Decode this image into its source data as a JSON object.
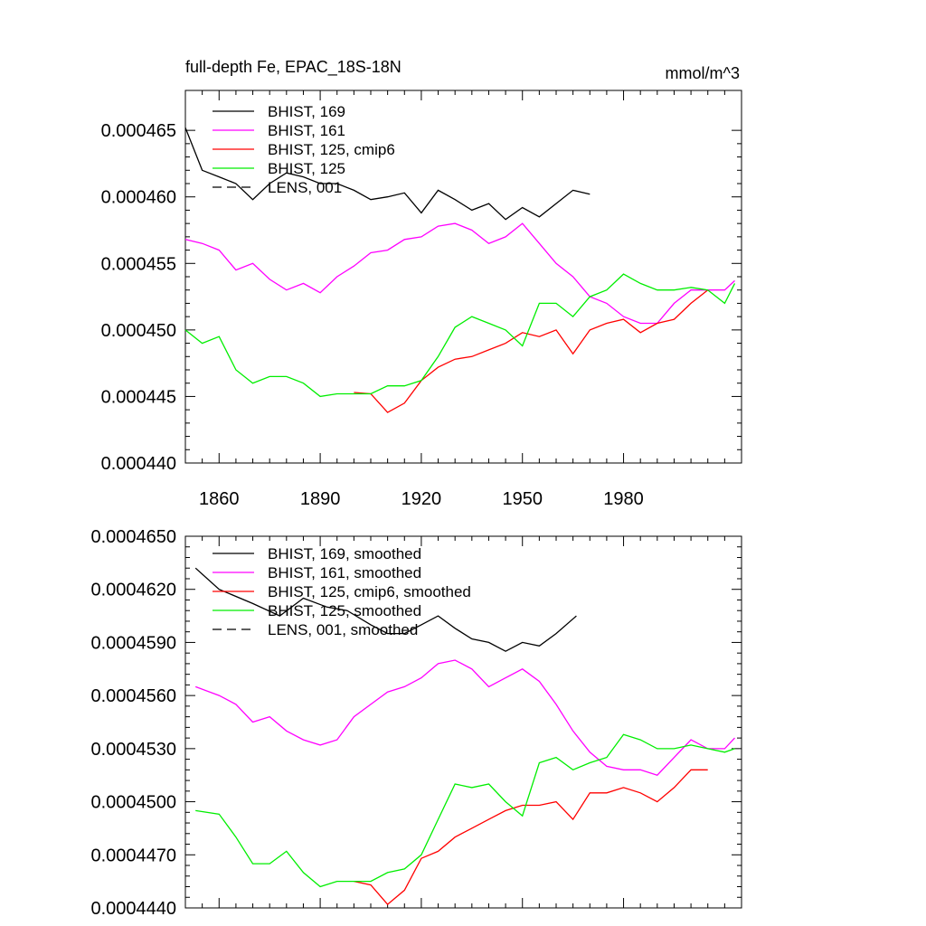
{
  "chart_data": [
    {
      "type": "line",
      "title": "full-depth Fe, EPAC_18S-18N",
      "units": "mmol/m^3",
      "xlim": [
        1850,
        2015
      ],
      "ylim": [
        0.00044,
        0.000468
      ],
      "xticks": [
        1860,
        1890,
        1920,
        1950,
        1980
      ],
      "xtick_labels": [
        "1860",
        "1890",
        "1920",
        "1950",
        "1980"
      ],
      "yticks": [
        0.00044,
        0.000445,
        0.00045,
        0.000455,
        0.00046,
        0.000465
      ],
      "ytick_labels": [
        "0.000440",
        "0.000445",
        "0.000450",
        "0.000455",
        "0.000460",
        "0.000465"
      ],
      "legend_position": "top-left",
      "series": [
        {
          "name": "BHIST, 169",
          "color": "#000000",
          "dash": "solid",
          "legend": "BHIST, 169",
          "x": [
            1850,
            1855,
            1860,
            1865,
            1870,
            1875,
            1880,
            1885,
            1890,
            1895,
            1900,
            1905,
            1910,
            1915,
            1920,
            1925,
            1930,
            1935,
            1940,
            1945,
            1950,
            1955,
            1960,
            1965,
            1970
          ],
          "y": [
            0.0004652,
            0.000462,
            0.0004615,
            0.000461,
            0.0004598,
            0.000461,
            0.0004618,
            0.0004615,
            0.000461,
            0.000461,
            0.0004605,
            0.0004598,
            0.00046,
            0.0004603,
            0.0004588,
            0.0004605,
            0.0004598,
            0.000459,
            0.0004595,
            0.0004583,
            0.0004592,
            0.0004585,
            0.0004595,
            0.0004605,
            0.0004602
          ]
        },
        {
          "name": "BHIST, 161",
          "color": "#ff00ff",
          "dash": "solid",
          "legend": "BHIST, 161",
          "x": [
            1850,
            1855,
            1860,
            1865,
            1870,
            1875,
            1880,
            1885,
            1890,
            1895,
            1900,
            1905,
            1910,
            1915,
            1920,
            1925,
            1930,
            1935,
            1940,
            1945,
            1950,
            1955,
            1960,
            1965,
            1970,
            1975,
            1980,
            1985,
            1990,
            1995,
            2000,
            2005,
            2010,
            2013
          ],
          "y": [
            0.0004568,
            0.0004565,
            0.000456,
            0.0004545,
            0.000455,
            0.0004538,
            0.000453,
            0.0004535,
            0.0004528,
            0.000454,
            0.0004548,
            0.0004558,
            0.000456,
            0.0004568,
            0.000457,
            0.0004578,
            0.000458,
            0.0004575,
            0.0004565,
            0.000457,
            0.000458,
            0.0004565,
            0.000455,
            0.000454,
            0.0004525,
            0.000452,
            0.000451,
            0.0004505,
            0.0004505,
            0.000452,
            0.000453,
            0.000453,
            0.000453,
            0.0004537
          ]
        },
        {
          "name": "BHIST, 125, cmip6",
          "color": "#ff0000",
          "dash": "solid",
          "legend": "BHIST, 125, cmip6",
          "x": [
            1900,
            1905,
            1910,
            1915,
            1920,
            1925,
            1930,
            1935,
            1940,
            1945,
            1950,
            1955,
            1960,
            1965,
            1970,
            1975,
            1980,
            1985,
            1990,
            1995,
            2000,
            2005
          ],
          "y": [
            0.0004453,
            0.0004452,
            0.0004438,
            0.0004445,
            0.0004462,
            0.0004472,
            0.0004478,
            0.000448,
            0.0004485,
            0.000449,
            0.0004498,
            0.0004495,
            0.00045,
            0.0004482,
            0.00045,
            0.0004505,
            0.0004508,
            0.0004498,
            0.0004505,
            0.0004508,
            0.000452,
            0.000453
          ]
        },
        {
          "name": "BHIST, 125",
          "color": "#00ee00",
          "dash": "solid",
          "legend": "BHIST, 125",
          "x": [
            1850,
            1855,
            1860,
            1865,
            1870,
            1875,
            1880,
            1885,
            1890,
            1895,
            1900,
            1905,
            1910,
            1915,
            1920,
            1925,
            1930,
            1935,
            1940,
            1945,
            1950,
            1955,
            1960,
            1965,
            1970,
            1975,
            1980,
            1985,
            1990,
            1995,
            2000,
            2005,
            2010,
            2013
          ],
          "y": [
            0.00045,
            0.000449,
            0.0004495,
            0.000447,
            0.000446,
            0.0004465,
            0.0004465,
            0.000446,
            0.000445,
            0.0004452,
            0.0004452,
            0.0004452,
            0.0004458,
            0.0004458,
            0.0004462,
            0.000448,
            0.0004502,
            0.000451,
            0.0004505,
            0.00045,
            0.0004488,
            0.000452,
            0.000452,
            0.000451,
            0.0004525,
            0.000453,
            0.0004542,
            0.0004535,
            0.000453,
            0.000453,
            0.0004532,
            0.000453,
            0.000452,
            0.0004535
          ]
        },
        {
          "name": "LENS, 001",
          "color": "#000000",
          "dash": "dashed",
          "legend": "LENS, 001",
          "x": [],
          "y": []
        }
      ]
    },
    {
      "type": "line",
      "title": "",
      "xlim": [
        1850,
        2015
      ],
      "ylim": [
        0.000444,
        0.000465
      ],
      "yticks": [
        0.000444,
        0.000447,
        0.00045,
        0.000453,
        0.000456,
        0.000459,
        0.000462,
        0.000465
      ],
      "ytick_labels": [
        "0.0004440",
        "0.0004470",
        "0.0004500",
        "0.0004530",
        "0.0004560",
        "0.0004590",
        "0.0004620",
        "0.0004650"
      ],
      "legend_position": "top-left",
      "series": [
        {
          "name": "BHIST, 169, smoothed",
          "color": "#000000",
          "dash": "solid",
          "legend": "BHIST, 169, smoothed",
          "x": [
            1853,
            1860,
            1870,
            1878,
            1885,
            1892,
            1898,
            1905,
            1910,
            1915,
            1920,
            1925,
            1930,
            1935,
            1940,
            1945,
            1950,
            1955,
            1960,
            1966
          ],
          "y": [
            0.0004632,
            0.000462,
            0.0004612,
            0.0004605,
            0.0004615,
            0.000461,
            0.0004608,
            0.00046,
            0.0004595,
            0.0004595,
            0.00046,
            0.0004605,
            0.0004598,
            0.0004592,
            0.000459,
            0.0004585,
            0.000459,
            0.0004588,
            0.0004595,
            0.0004605
          ]
        },
        {
          "name": "BHIST, 161, smoothed",
          "color": "#ff00ff",
          "dash": "solid",
          "legend": "BHIST, 161, smoothed",
          "x": [
            1853,
            1860,
            1865,
            1870,
            1875,
            1880,
            1885,
            1890,
            1895,
            1900,
            1905,
            1910,
            1915,
            1920,
            1925,
            1930,
            1935,
            1940,
            1945,
            1950,
            1955,
            1960,
            1965,
            1970,
            1975,
            1980,
            1985,
            1990,
            1995,
            2000,
            2005,
            2010,
            2013
          ],
          "y": [
            0.0004565,
            0.000456,
            0.0004555,
            0.0004545,
            0.0004548,
            0.000454,
            0.0004535,
            0.0004532,
            0.0004535,
            0.0004548,
            0.0004555,
            0.0004562,
            0.0004565,
            0.000457,
            0.0004578,
            0.000458,
            0.0004575,
            0.0004565,
            0.000457,
            0.0004575,
            0.0004568,
            0.0004555,
            0.000454,
            0.0004528,
            0.000452,
            0.0004518,
            0.0004518,
            0.0004515,
            0.0004525,
            0.0004535,
            0.000453,
            0.000453,
            0.0004536
          ]
        },
        {
          "name": "BHIST, 125, cmip6, smoothed",
          "color": "#ff0000",
          "dash": "solid",
          "legend": "BHIST, 125, cmip6, smoothed",
          "x": [
            1900,
            1905,
            1910,
            1915,
            1920,
            1925,
            1930,
            1935,
            1940,
            1945,
            1950,
            1955,
            1960,
            1965,
            1970,
            1975,
            1980,
            1985,
            1990,
            1995,
            2000,
            2005
          ],
          "y": [
            0.0004455,
            0.0004453,
            0.0004442,
            0.000445,
            0.0004468,
            0.0004472,
            0.000448,
            0.0004485,
            0.000449,
            0.0004495,
            0.0004498,
            0.0004498,
            0.00045,
            0.000449,
            0.0004505,
            0.0004505,
            0.0004508,
            0.0004505,
            0.00045,
            0.0004508,
            0.0004518,
            0.0004518
          ]
        },
        {
          "name": "BHIST, 125, smoothed",
          "color": "#00ee00",
          "dash": "solid",
          "legend": "BHIST, 125, smoothed",
          "x": [
            1853,
            1860,
            1865,
            1870,
            1875,
            1880,
            1885,
            1890,
            1895,
            1900,
            1905,
            1910,
            1915,
            1920,
            1925,
            1930,
            1935,
            1940,
            1945,
            1950,
            1955,
            1960,
            1965,
            1970,
            1975,
            1980,
            1985,
            1990,
            1995,
            2000,
            2005,
            2010,
            2013
          ],
          "y": [
            0.0004495,
            0.0004493,
            0.000448,
            0.0004465,
            0.0004465,
            0.0004472,
            0.000446,
            0.0004452,
            0.0004455,
            0.0004455,
            0.0004455,
            0.000446,
            0.0004462,
            0.000447,
            0.000449,
            0.000451,
            0.0004508,
            0.000451,
            0.00045,
            0.0004492,
            0.0004522,
            0.0004525,
            0.0004518,
            0.0004522,
            0.0004525,
            0.0004538,
            0.0004535,
            0.000453,
            0.000453,
            0.0004532,
            0.000453,
            0.0004528,
            0.000453
          ]
        },
        {
          "name": "LENS, 001, smoothed",
          "color": "#000000",
          "dash": "dashed",
          "legend": "LENS, 001, smoothed",
          "x": [],
          "y": []
        }
      ]
    }
  ]
}
